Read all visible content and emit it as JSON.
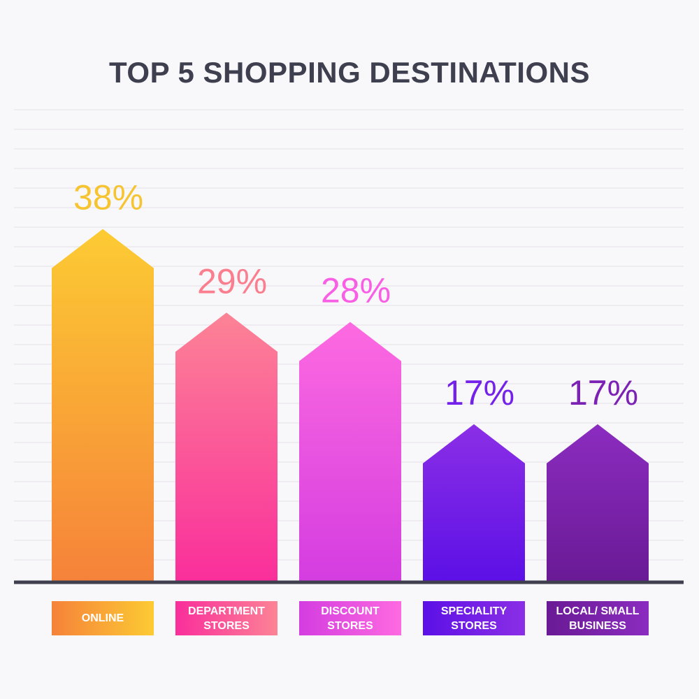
{
  "chart_data": {
    "type": "bar",
    "title": "TOP 5 SHOPPING DESTINATIONS",
    "categories": [
      "ONLINE",
      "DEPARTMENT STORES",
      "DISCOUNT STORES",
      "SPECIALITY STORES",
      "LOCAL/ SMALL BUSINESS"
    ],
    "values": [
      38,
      29,
      28,
      17,
      17
    ],
    "value_labels": [
      "38%",
      "29%",
      "28%",
      "17%",
      "17%"
    ],
    "ylim": [
      0,
      57.5
    ],
    "grid": true,
    "bar_shape": "arrow",
    "colors": [
      {
        "top": "#fccb33",
        "bottom": "#f6823a",
        "label": "#f6c431"
      },
      {
        "top": "#fc8396",
        "bottom": "#fa2e9b",
        "label": "#fb7e8f"
      },
      {
        "top": "#fd6ae0",
        "bottom": "#d43de0",
        "label": "#f95fe4"
      },
      {
        "top": "#8b2fe6",
        "bottom": "#5c10e6",
        "label": "#7422ea"
      },
      {
        "top": "#8b2cc0",
        "bottom": "#6a1a95",
        "label": "#7b21b4"
      }
    ]
  },
  "colors": {
    "background": "#f8f7fa",
    "title": "#3e3f4f",
    "axis": "#3e3f4f",
    "grid": "#e3e1e6"
  }
}
